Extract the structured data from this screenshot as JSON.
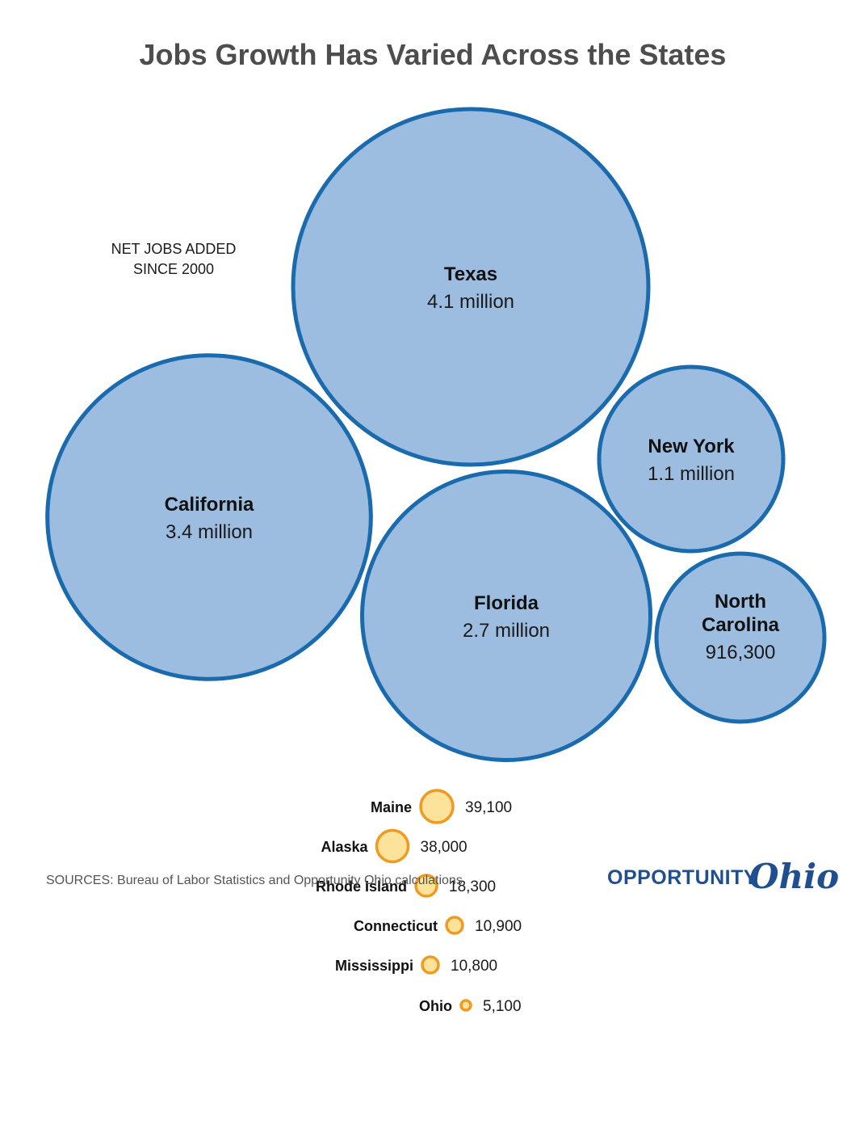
{
  "title": "Jobs Growth Has Varied Across the States",
  "subtitle_lines": [
    "NET JOBS ADDED",
    "SINCE 2000"
  ],
  "colors": {
    "large_fill": "#9dbde0",
    "large_stroke": "#1a6aae",
    "small_fill": "#fde39a",
    "small_stroke": "#ef9a23"
  },
  "chart_data": {
    "type": "bubble",
    "title": "Jobs Growth Has Varied Across the States",
    "subtitle": "NET JOBS ADDED SINCE 2000",
    "large_states": [
      {
        "name": "Texas",
        "value": 4100000,
        "label": "4.1 million",
        "name_lines": [
          "Texas"
        ]
      },
      {
        "name": "California",
        "value": 3400000,
        "label": "3.4 million",
        "name_lines": [
          "California"
        ]
      },
      {
        "name": "Florida",
        "value": 2700000,
        "label": "2.7 million",
        "name_lines": [
          "Florida"
        ]
      },
      {
        "name": "New York",
        "value": 1100000,
        "label": "1.1 million",
        "name_lines": [
          "New York"
        ]
      },
      {
        "name": "North Carolina",
        "value": 916300,
        "label": "916,300",
        "name_lines": [
          "North",
          "Carolina"
        ]
      }
    ],
    "small_states": [
      {
        "name": "Maine",
        "value": 39100,
        "label": "39,100"
      },
      {
        "name": "Alaska",
        "value": 38000,
        "label": "38,000"
      },
      {
        "name": "Rhode Island",
        "value": 18300,
        "label": "18,300"
      },
      {
        "name": "Connecticut",
        "value": 10900,
        "label": "10,900"
      },
      {
        "name": "Mississippi",
        "value": 10800,
        "label": "10,800"
      },
      {
        "name": "Ohio",
        "value": 5100,
        "label": "5,100"
      }
    ]
  },
  "source": "SOURCES: Bureau of Labor Statistics and Opportunity Ohio calculations.",
  "logo": {
    "word": "OPPORTUNITY",
    "script": "Ohio"
  }
}
